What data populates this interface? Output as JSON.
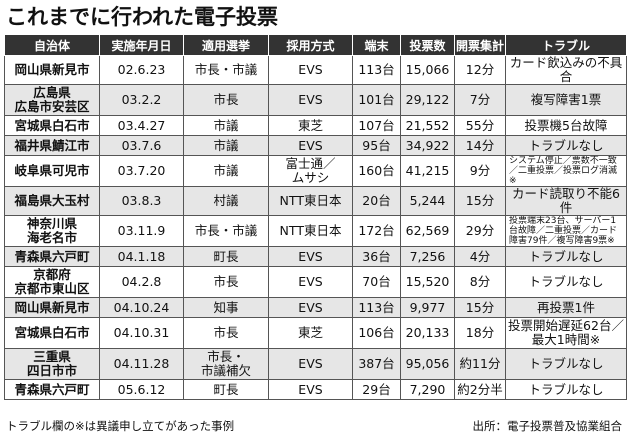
{
  "title": "これまでに行われた電子投票",
  "headers": [
    "自治体",
    "実施年月日",
    "適用選挙",
    "採用方式",
    "端末",
    "投票数",
    "開票集計",
    "トラブル"
  ],
  "rows": [
    {
      "mun": "岡山県新見市",
      "date": "02.6.23",
      "election": "市長・市議",
      "system": "EVS",
      "terminals": "113台",
      "votes": "15,066",
      "count": "12分",
      "trouble": "カード飲込みの不具合",
      "small": false
    },
    {
      "mun": "広島県\n広島市安芸区",
      "date": "03.2.2",
      "election": "市長",
      "system": "EVS",
      "terminals": "101台",
      "votes": "29,122",
      "count": "7分",
      "trouble": "複写障害1票",
      "small": false
    },
    {
      "mun": "宮城県白石市",
      "date": "03.4.27",
      "election": "市議",
      "system": "東芝",
      "terminals": "107台",
      "votes": "21,552",
      "count": "55分",
      "trouble": "投票機5台故障",
      "small": false
    },
    {
      "mun": "福井県鯖江市",
      "date": "03.7.6",
      "election": "市議",
      "system": "EVS",
      "terminals": "95台",
      "votes": "34,922",
      "count": "14分",
      "trouble": "トラブルなし",
      "small": false
    },
    {
      "mun": "岐阜県可児市",
      "date": "03.7.20",
      "election": "市議",
      "system": "富士通／\nムサシ",
      "terminals": "160台",
      "votes": "41,215",
      "count": "9分",
      "trouble": "システム停止／票数不一致／二重投票／投票ログ消滅※",
      "small": true
    },
    {
      "mun": "福島県大玉村",
      "date": "03.8.3",
      "election": "村議",
      "system": "NTT東日本",
      "terminals": "20台",
      "votes": "5,244",
      "count": "15分",
      "trouble": "カード読取り不能6件",
      "small": false
    },
    {
      "mun": "神奈川県\n海老名市",
      "date": "03.11.9",
      "election": "市長・市議",
      "system": "NTT東日本",
      "terminals": "172台",
      "votes": "62,569",
      "count": "29分",
      "trouble": "投票端末23台、サーバー1台故障／二重投票／カード障害79件／複写障害9票※",
      "small": true
    },
    {
      "mun": "青森県六戸町",
      "date": "04.1.18",
      "election": "町長",
      "system": "EVS",
      "terminals": "36台",
      "votes": "7,256",
      "count": "4分",
      "trouble": "トラブルなし",
      "small": false
    },
    {
      "mun": "京都府\n京都市東山区",
      "date": "04.2.8",
      "election": "市長",
      "system": "EVS",
      "terminals": "70台",
      "votes": "15,520",
      "count": "8分",
      "trouble": "トラブルなし",
      "small": false
    },
    {
      "mun": "岡山県新見市",
      "date": "04.10.24",
      "election": "知事",
      "system": "EVS",
      "terminals": "113台",
      "votes": "9,977",
      "count": "15分",
      "trouble": "再投票1件",
      "small": false
    },
    {
      "mun": "宮城県白石市",
      "date": "04.10.31",
      "election": "市長",
      "system": "東芝",
      "terminals": "106台",
      "votes": "20,133",
      "count": "18分",
      "trouble": "投票開始遅延62台／最大1時間※",
      "small": false
    },
    {
      "mun": "三重県\n四日市市",
      "date": "04.11.28",
      "election": "市長・\n市議補欠",
      "system": "EVS",
      "terminals": "387台",
      "votes": "95,056",
      "count": "約11分",
      "trouble": "トラブルなし",
      "small": false
    },
    {
      "mun": "青森県六戸町",
      "date": "05.6.12",
      "election": "町長",
      "system": "EVS",
      "terminals": "29台",
      "votes": "7,290",
      "count": "約2分半",
      "trouble": "トラブルなし",
      "small": false
    }
  ],
  "footnote": "トラブル欄の※は異議申し立てがあった事例",
  "source": "出所：電子投票普及協業組合"
}
